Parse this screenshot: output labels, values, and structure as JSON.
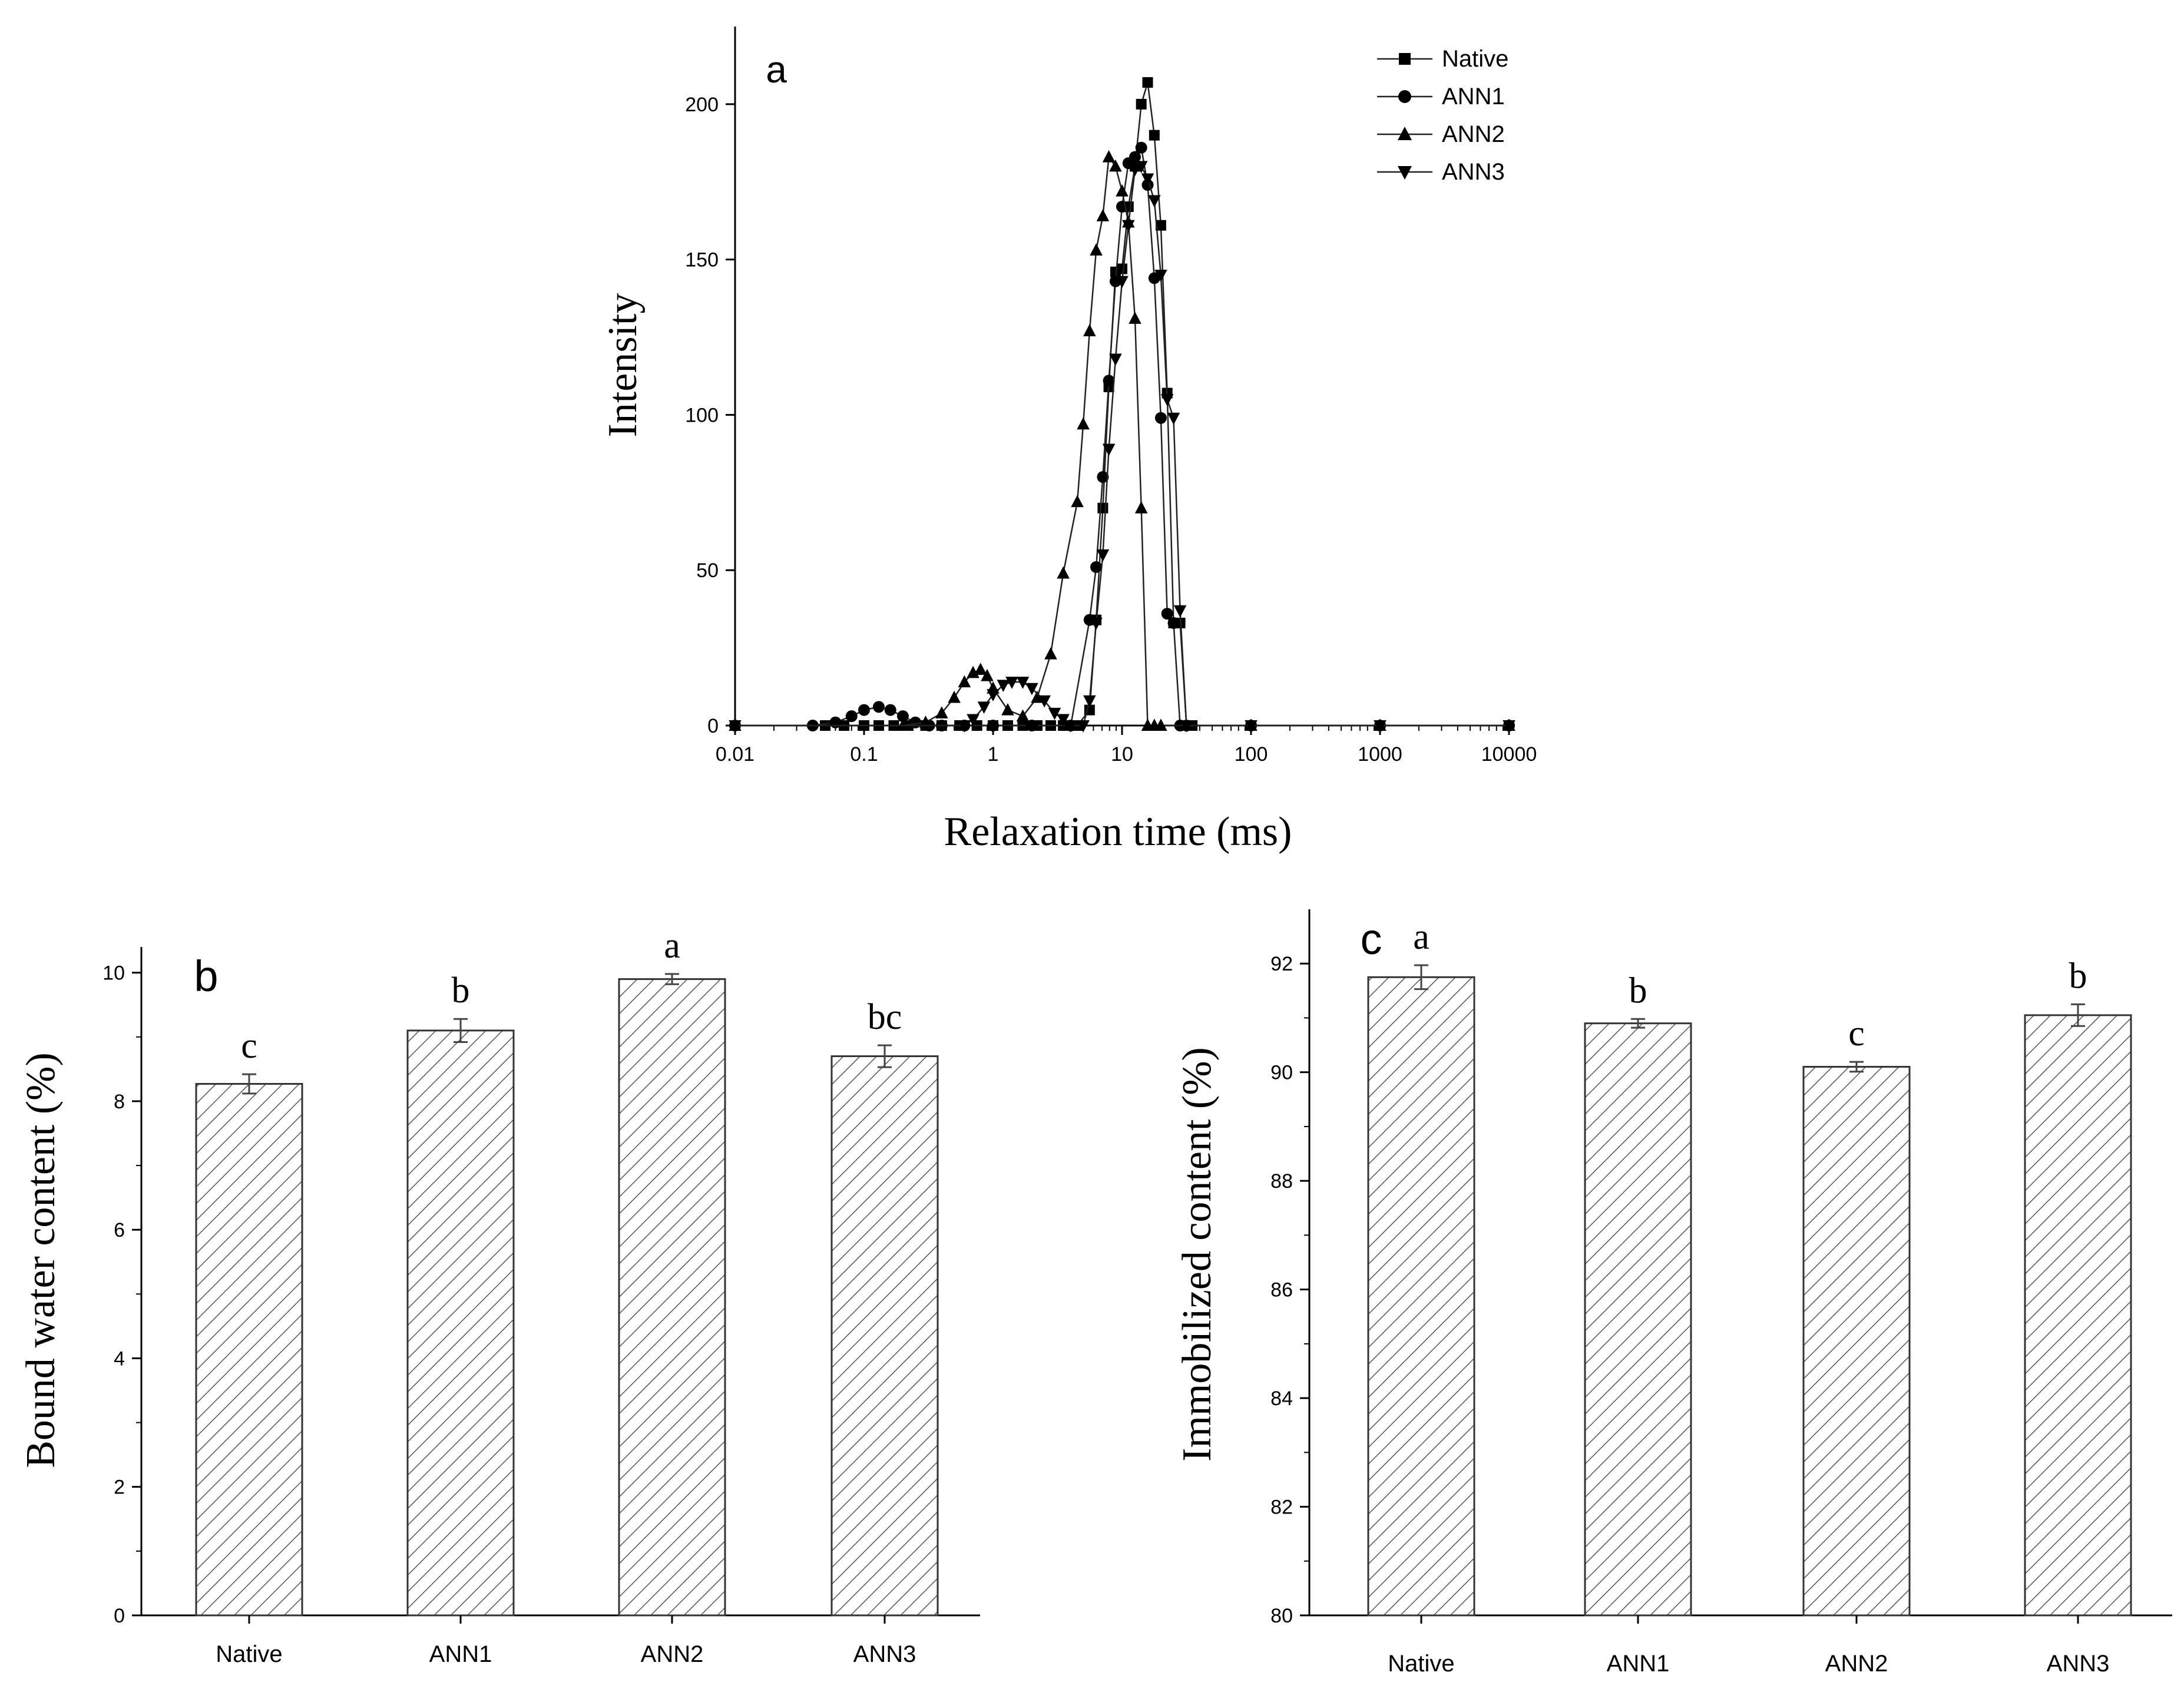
{
  "chart_data": [
    {
      "panel": "a",
      "type": "line",
      "title": "",
      "panel_label": "a",
      "xlabel": "Relaxation time (ms)",
      "ylabel": "Intensity",
      "xscale": "log",
      "xlim": [
        0.01,
        10000
      ],
      "ylim": [
        0,
        225
      ],
      "x_ticks": [
        0.01,
        0.1,
        1,
        10,
        100,
        1000,
        10000
      ],
      "x_tick_labels": [
        "0.01",
        "0.1",
        "1",
        "10",
        "100",
        "1000",
        "10000"
      ],
      "y_ticks": [
        0,
        50,
        100,
        150,
        200
      ],
      "y_tick_labels": [
        "0",
        "50",
        "100",
        "150",
        "200"
      ],
      "legend_position": "top-right",
      "series": [
        {
          "name": "Native",
          "marker": "square",
          "x": [
            0.01,
            0.05,
            0.07,
            0.1,
            0.13,
            0.17,
            0.22,
            0.3,
            0.4,
            0.55,
            0.75,
            1.0,
            1.3,
            1.7,
            2.2,
            2.8,
            3.5,
            4.5,
            5.6,
            6.3,
            7.1,
            7.9,
            8.9,
            10,
            11.2,
            12.6,
            14.1,
            15.8,
            17.8,
            20,
            22.4,
            25.1,
            28.2,
            31.6,
            35,
            100,
            1000,
            10000
          ],
          "y": [
            0,
            0,
            0,
            0,
            0,
            0,
            0,
            0,
            0,
            0,
            0,
            0,
            0,
            0,
            0,
            0,
            0,
            0,
            5,
            34,
            70,
            109,
            146,
            147,
            167,
            180,
            200,
            207,
            190,
            161,
            107,
            33,
            33,
            0,
            0,
            0,
            0,
            0
          ]
        },
        {
          "name": "ANN1",
          "marker": "circle",
          "x": [
            0.01,
            0.04,
            0.06,
            0.08,
            0.1,
            0.13,
            0.16,
            0.2,
            0.25,
            0.32,
            0.4,
            0.6,
            1,
            2,
            4,
            5.6,
            6.3,
            7.1,
            7.9,
            8.9,
            10,
            11.2,
            12.6,
            14.1,
            15.8,
            17.8,
            20,
            22.4,
            25.1,
            28.2,
            31.6,
            100,
            1000,
            10000
          ],
          "y": [
            0,
            0,
            1,
            3,
            5,
            6,
            5,
            3,
            1,
            0,
            0,
            0,
            0,
            0,
            0,
            34,
            51,
            80,
            111,
            143,
            167,
            181,
            183,
            186,
            174,
            144,
            99,
            36,
            33,
            0,
            0,
            0,
            0,
            0
          ]
        },
        {
          "name": "ANN2",
          "marker": "triangle-up",
          "x": [
            0.01,
            0.2,
            0.3,
            0.4,
            0.5,
            0.6,
            0.7,
            0.8,
            0.9,
            1.0,
            1.3,
            1.7,
            2.2,
            2.8,
            3.5,
            4.5,
            5.0,
            5.6,
            6.3,
            7.1,
            7.9,
            8.9,
            10,
            11.2,
            12.6,
            14.1,
            15.8,
            17.8,
            20,
            100,
            1000,
            10000
          ],
          "y": [
            0,
            0,
            1,
            4,
            9,
            14,
            17,
            18,
            16,
            12,
            5,
            3,
            9,
            23,
            49,
            72,
            97,
            127,
            153,
            164,
            183,
            180,
            172,
            162,
            131,
            70,
            0,
            0,
            0,
            0,
            0,
            0
          ]
        },
        {
          "name": "ANN3",
          "marker": "triangle-down",
          "x": [
            0.01,
            0.6,
            0.7,
            0.85,
            1.0,
            1.2,
            1.4,
            1.7,
            2.0,
            2.5,
            3.0,
            3.5,
            4.0,
            5.0,
            5.6,
            6.3,
            7.1,
            7.9,
            8.9,
            10,
            11.2,
            12.6,
            14.1,
            15.8,
            17.8,
            20,
            22.4,
            25.1,
            28.2,
            31.6,
            100,
            1000,
            10000
          ],
          "y": [
            0,
            0,
            2,
            6,
            10,
            13,
            14,
            14,
            12,
            8,
            4,
            2,
            0,
            0,
            8,
            33,
            55,
            89,
            118,
            143,
            161,
            179,
            180,
            176,
            169,
            145,
            105,
            99,
            37,
            0,
            0,
            0,
            0
          ]
        }
      ]
    },
    {
      "panel": "b",
      "type": "bar",
      "title": "",
      "panel_label": "b",
      "xlabel": "",
      "ylabel": "Bound water content (%)",
      "categories": [
        "Native",
        "ANN1",
        "ANN2",
        "ANN3"
      ],
      "values": [
        8.27,
        9.1,
        9.9,
        8.7
      ],
      "errors": [
        0.15,
        0.18,
        0.08,
        0.17
      ],
      "significance": [
        "c",
        "b",
        "a",
        "bc"
      ],
      "ylim": [
        0,
        10.4
      ],
      "y_ticks": [
        0,
        2,
        4,
        6,
        8,
        10
      ],
      "y_tick_labels": [
        "0",
        "2",
        "4",
        "6",
        "8",
        "10"
      ],
      "hatch": "diagonal"
    },
    {
      "panel": "c",
      "type": "bar",
      "title": "",
      "panel_label": "c",
      "xlabel": "",
      "ylabel": "Immobilized content (%)",
      "categories": [
        "Native",
        "ANN1",
        "ANN2",
        "ANN3"
      ],
      "values": [
        91.75,
        90.9,
        90.1,
        91.05
      ],
      "errors": [
        0.22,
        0.08,
        0.09,
        0.2
      ],
      "significance": [
        "a",
        "b",
        "c",
        "b"
      ],
      "ylim": [
        80,
        93
      ],
      "y_ticks": [
        80,
        82,
        84,
        86,
        88,
        90,
        92
      ],
      "y_tick_labels": [
        "80",
        "82",
        "84",
        "86",
        "88",
        "90",
        "92"
      ],
      "hatch": "diagonal"
    }
  ]
}
